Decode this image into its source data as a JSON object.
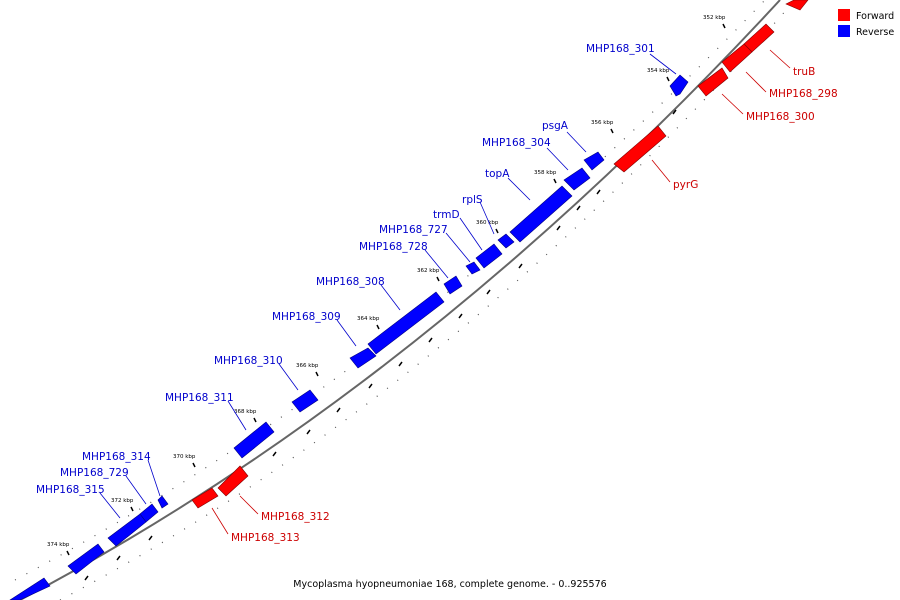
{
  "title": "Mycoplasma hyopneumoniae 168, complete genome. - 0..925576",
  "colors": {
    "forward": "#ff0000",
    "reverse": "#0000ff",
    "forward_label": "#cc0000",
    "reverse_label": "#0000cc",
    "backbone": "#666666"
  },
  "legend": [
    {
      "label": "Forward",
      "color": "#ff0000"
    },
    {
      "label": "Reverse",
      "color": "#0000ff"
    }
  ],
  "kbp_ticks": [
    "352 kbp",
    "354 kbp",
    "356 kbp",
    "358 kbp",
    "360 kbp",
    "362 kbp",
    "364 kbp",
    "366 kbp",
    "368 kbp",
    "370 kbp",
    "372 kbp",
    "374 kbp"
  ],
  "genes": {
    "forward": [
      "truB",
      "MHP168_298",
      "MHP168_300",
      "pyrG",
      "MHP168_312",
      "MHP168_313"
    ],
    "reverse": [
      "MHP168_301",
      "psgA",
      "MHP168_304",
      "topA",
      "rplS",
      "trmD",
      "MHP168_727",
      "MHP168_728",
      "MHP168_308",
      "MHP168_309",
      "MHP168_310",
      "MHP168_311",
      "MHP168_314",
      "MHP168_729",
      "MHP168_315"
    ]
  }
}
